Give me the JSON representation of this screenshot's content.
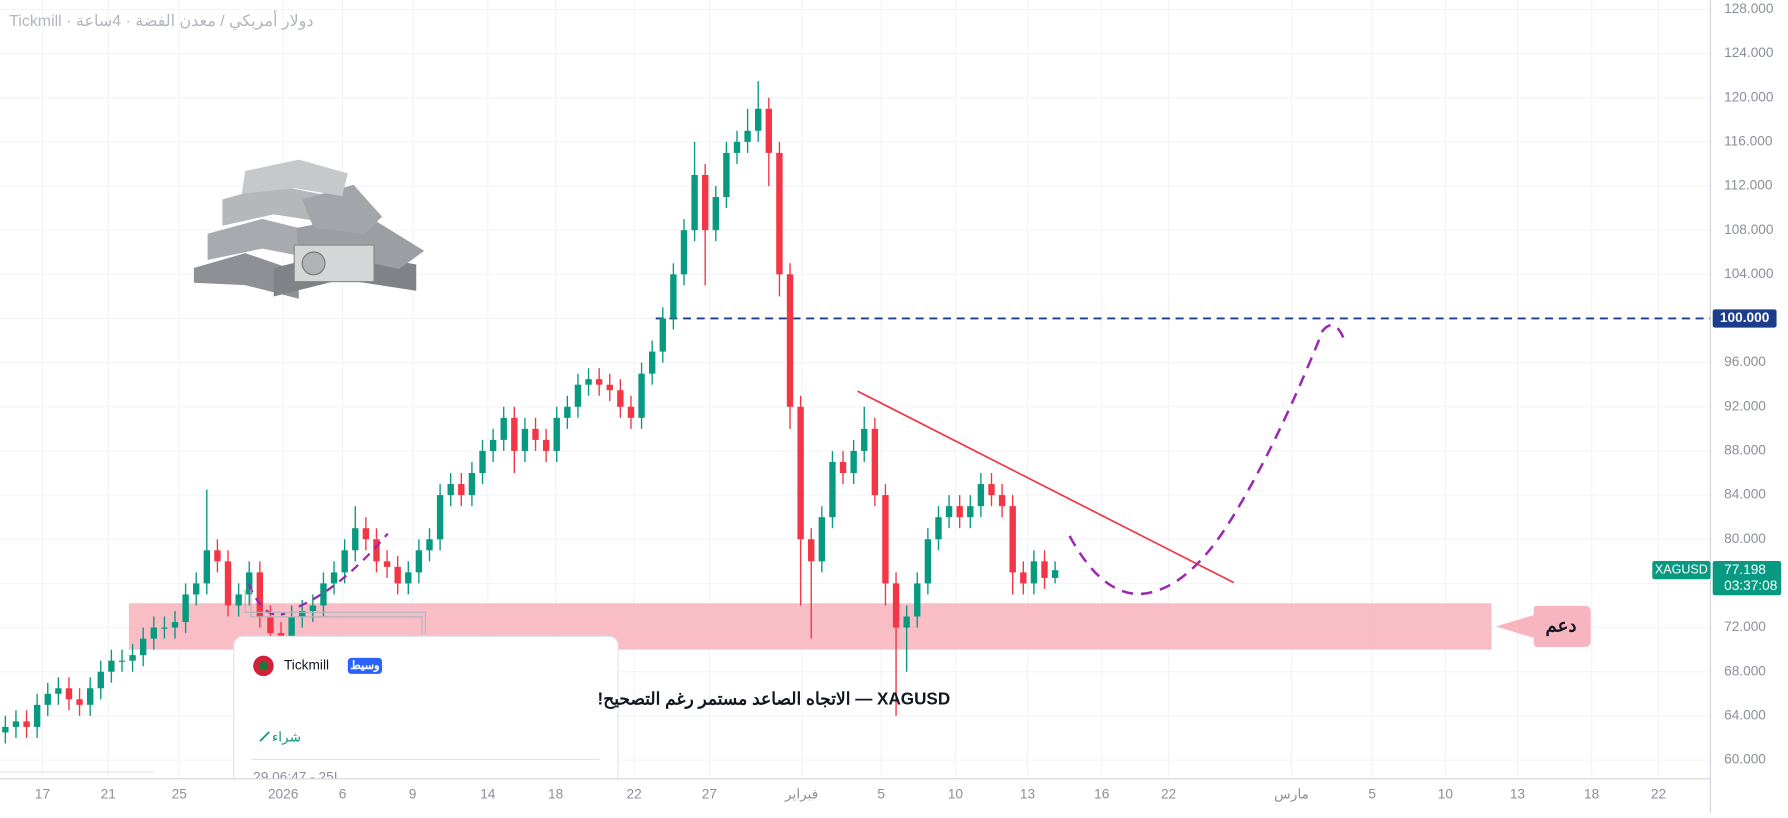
{
  "chart_data": {
    "type": "candlestick",
    "title": "Tickmill · دولار أمريكي / معدن الفضة · 4ساعة",
    "symbol": "XAGUSD",
    "last_price": 77.198,
    "last_price_label": "77.198",
    "countdown": "03:37:08",
    "up_color": "#089981",
    "down_color": "#f23645",
    "open": [
      62.5,
      63,
      63.5,
      63,
      65,
      66,
      66.5,
      65.5,
      65,
      66.5,
      68,
      69,
      69,
      69.5,
      71,
      72,
      72,
      72.5,
      75,
      76,
      79,
      78,
      74,
      75,
      77,
      73,
      71.5,
      71,
      73,
      73.5,
      74,
      76,
      77,
      79,
      81,
      80,
      78,
      77.5,
      76,
      77,
      79,
      80,
      84,
      85,
      84,
      86,
      88,
      89,
      91,
      88,
      90,
      89,
      88,
      91,
      92,
      94,
      94.5,
      94,
      93.5,
      92,
      91,
      95,
      97,
      100,
      104,
      108,
      113,
      108,
      111,
      115,
      116,
      117,
      119,
      115,
      104,
      92,
      80,
      78,
      82,
      87,
      86,
      88,
      90,
      84,
      76,
      72,
      73,
      76,
      80,
      82,
      83,
      82,
      83,
      85,
      84,
      83,
      77,
      76,
      78,
      76.5
    ],
    "high": [
      64,
      64.5,
      64.5,
      66,
      67,
      67.5,
      67.5,
      66.5,
      67.5,
      69,
      70,
      70,
      70.5,
      72,
      73,
      73,
      73.5,
      76,
      77,
      84.5,
      80,
      79,
      76,
      78,
      78,
      74,
      72.5,
      74,
      74.5,
      75,
      77,
      78,
      80,
      83,
      82,
      81,
      79,
      78.5,
      78,
      80,
      81,
      85,
      86,
      86,
      87,
      89,
      90,
      92,
      92,
      91,
      91,
      90,
      92,
      93,
      95,
      95.5,
      95.5,
      95,
      94.5,
      93,
      96,
      98,
      101,
      105,
      109,
      116,
      114,
      112,
      116,
      117,
      119,
      121.5,
      120,
      116,
      105,
      93,
      81,
      83,
      88,
      88,
      89,
      92,
      91,
      85,
      77,
      74,
      77,
      81,
      83,
      84,
      84,
      84,
      86,
      86,
      85,
      84,
      78,
      79,
      79,
      78
    ],
    "low": [
      61.5,
      62,
      62,
      62,
      64,
      65,
      64.5,
      64,
      64,
      65.5,
      67,
      68,
      68,
      68.5,
      70,
      71,
      71,
      71.5,
      74,
      75,
      77,
      73,
      73,
      74,
      72,
      70.5,
      70,
      70,
      72,
      72.5,
      73,
      75,
      76,
      78,
      79,
      77,
      76.5,
      75,
      75,
      76,
      78,
      79,
      83,
      83,
      83,
      85,
      87,
      88,
      86,
      87,
      88,
      87,
      87,
      90,
      91,
      93,
      93,
      92.5,
      91,
      90,
      90,
      94,
      96,
      99,
      103,
      107,
      103,
      107,
      110,
      114,
      115,
      116,
      112,
      102,
      90,
      74,
      71,
      77,
      81,
      85,
      85,
      87,
      83,
      74,
      64,
      68,
      72,
      75,
      79,
      81,
      81,
      81,
      82,
      83,
      82,
      75,
      75,
      75,
      75.5,
      76
    ],
    "close": [
      63,
      63.5,
      63,
      65,
      66,
      66.5,
      65.5,
      65,
      66.5,
      68,
      69,
      69,
      69.5,
      71,
      72,
      72,
      72.5,
      75,
      76,
      79,
      78,
      74,
      75,
      77,
      73,
      71.5,
      71,
      73,
      73.5,
      74,
      76,
      77,
      79,
      81,
      80,
      78,
      77.5,
      76,
      77,
      79,
      80,
      84,
      85,
      84,
      86,
      88,
      89,
      91,
      88,
      90,
      89,
      88,
      91,
      92,
      94,
      94.5,
      94,
      93.5,
      92,
      91,
      95,
      97,
      100,
      104,
      108,
      113,
      108,
      111,
      115,
      116,
      117,
      119,
      115,
      104,
      92,
      80,
      78,
      82,
      87,
      86,
      88,
      90,
      84,
      76,
      72,
      73,
      76,
      80,
      82,
      83,
      82,
      83,
      85,
      84,
      83,
      77,
      76,
      78,
      76.5,
      77.198
    ],
    "xlim": [
      -0.5,
      160.8
    ],
    "xticks": [
      {
        "value": 3.5,
        "label": "17"
      },
      {
        "value": 9.7,
        "label": "21"
      },
      {
        "value": 16.4,
        "label": "25"
      },
      {
        "value": 26.2,
        "label": "2026"
      },
      {
        "value": 31.8,
        "label": "6"
      },
      {
        "value": 38.4,
        "label": "9"
      },
      {
        "value": 45.5,
        "label": "14"
      },
      {
        "value": 51.9,
        "label": "18"
      },
      {
        "value": 59.3,
        "label": "22"
      },
      {
        "value": 66.4,
        "label": "27"
      },
      {
        "value": 75.1,
        "label": "فبراير"
      },
      {
        "value": 82.6,
        "label": "5"
      },
      {
        "value": 89.6,
        "label": "10"
      },
      {
        "value": 96.4,
        "label": "13"
      },
      {
        "value": 103.4,
        "label": "16"
      },
      {
        "value": 109.7,
        "label": "22"
      },
      {
        "value": 121.3,
        "label": "مارس"
      },
      {
        "value": 128.9,
        "label": "5"
      },
      {
        "value": 135.8,
        "label": "10"
      },
      {
        "value": 142.6,
        "label": "13"
      },
      {
        "value": 149.6,
        "label": "18"
      },
      {
        "value": 155.9,
        "label": "22"
      }
    ],
    "ylim": [
      58.3,
      128.85
    ],
    "yticks": [
      {
        "value": 128,
        "label": "128.000"
      },
      {
        "value": 124,
        "label": "124.000"
      },
      {
        "value": 120,
        "label": "120.000"
      },
      {
        "value": 116,
        "label": "116.000"
      },
      {
        "value": 112,
        "label": "112.000"
      },
      {
        "value": 108,
        "label": "108.000"
      },
      {
        "value": 104,
        "label": "104.000"
      },
      {
        "value": 100,
        "label": "100.000"
      },
      {
        "value": 96,
        "label": "96.000"
      },
      {
        "value": 92,
        "label": "92.000"
      },
      {
        "value": 88,
        "label": "88.000"
      },
      {
        "value": 84,
        "label": "84.000"
      },
      {
        "value": 80,
        "label": "80.000"
      },
      {
        "value": 76,
        "label": "76.000"
      },
      {
        "value": 72,
        "label": "72.000"
      },
      {
        "value": 68,
        "label": "68.000"
      },
      {
        "value": 64,
        "label": "64.000"
      },
      {
        "value": 60,
        "label": "60.000"
      }
    ],
    "resistance": {
      "value": 100,
      "label": "100.000",
      "color": "#1c3d8c"
    },
    "support_zone": {
      "range": [
        70,
        74.2
      ],
      "label": "دعم",
      "color": "#f7b6bf"
    }
  },
  "idea": {
    "author": "Tickmill",
    "badge": "وسيط",
    "title": "XAGUSD — الاتجاه الصاعد مستمر رغم التصحيح!",
    "direction": "شراء",
    "time": "29.06:47 - 25I"
  }
}
